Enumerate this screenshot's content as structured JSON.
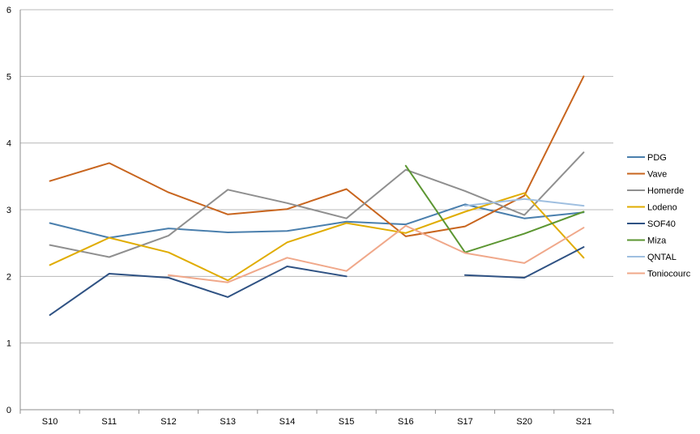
{
  "chart_data": {
    "type": "line",
    "title": "",
    "xlabel": "",
    "ylabel": "",
    "categories": [
      "S10",
      "S11",
      "S12",
      "S13",
      "S14",
      "S15",
      "S16",
      "S17",
      "S20",
      "S21"
    ],
    "yticks": [
      "0",
      "1",
      "2",
      "3",
      "4",
      "5",
      "6"
    ],
    "ylim": [
      0,
      6
    ],
    "grid": true,
    "legend_position": "right",
    "series": [
      {
        "name": "PDG",
        "color": "#4a7fad",
        "values": [
          2.8,
          2.58,
          2.72,
          2.66,
          2.68,
          2.82,
          2.78,
          3.08,
          2.87,
          2.96
        ]
      },
      {
        "name": "Vave",
        "color": "#c8651e",
        "values": [
          3.43,
          3.7,
          3.26,
          2.93,
          3.01,
          3.31,
          2.6,
          2.75,
          3.21,
          5.0
        ]
      },
      {
        "name": "Homerde",
        "color": "#8f8f8f",
        "values": [
          2.47,
          2.29,
          2.61,
          3.3,
          3.1,
          2.87,
          3.6,
          3.28,
          2.92,
          3.86
        ]
      },
      {
        "name": "Lodeno",
        "color": "#e0ac00",
        "values": [
          2.17,
          2.58,
          2.36,
          1.94,
          2.51,
          2.8,
          2.65,
          2.97,
          3.25,
          2.28
        ]
      },
      {
        "name": "SOF40",
        "color": "#2f5283",
        "values": [
          1.42,
          2.04,
          1.98,
          1.69,
          2.15,
          2.0,
          null,
          2.02,
          1.98,
          2.44
        ]
      },
      {
        "name": "Miza",
        "color": "#5c9632",
        "values": [
          null,
          null,
          null,
          null,
          null,
          null,
          3.66,
          2.36,
          2.64,
          2.97
        ]
      },
      {
        "name": "QNTAL",
        "color": "#9fbfe0",
        "values": [
          null,
          null,
          null,
          null,
          null,
          null,
          null,
          3.06,
          3.16,
          3.06
        ]
      },
      {
        "name": "Toniocourc",
        "color": "#f0a88a",
        "values": [
          null,
          null,
          2.02,
          1.91,
          2.28,
          2.08,
          2.76,
          2.35,
          2.2,
          2.73
        ]
      }
    ]
  }
}
